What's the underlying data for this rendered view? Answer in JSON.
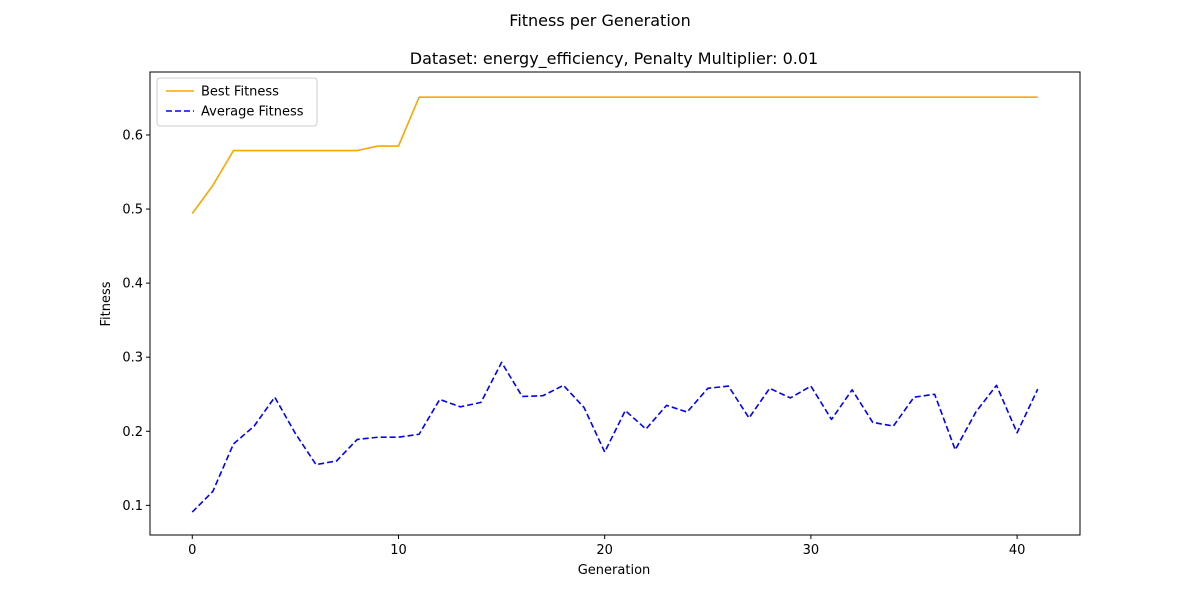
{
  "figure": {
    "suptitle": "Fitness per Generation",
    "title": "Dataset: energy_efficiency, Penalty Multiplier: 0.01"
  },
  "chart_data": {
    "type": "line",
    "title": "Dataset: energy_efficiency, Penalty Multiplier: 0.01",
    "suptitle": "Fitness per Generation",
    "xlabel": "Generation",
    "ylabel": "Fitness",
    "xlim": [
      -2.05,
      43.05
    ],
    "ylim": [
      0.06,
      0.685
    ],
    "xticks": [
      0,
      10,
      20,
      30,
      40
    ],
    "yticks": [
      0.1,
      0.2,
      0.3,
      0.4,
      0.5,
      0.6
    ],
    "grid": false,
    "legend_position": "top-left",
    "x": [
      0,
      1,
      2,
      3,
      4,
      5,
      6,
      7,
      8,
      9,
      10,
      11,
      12,
      13,
      14,
      15,
      16,
      17,
      18,
      19,
      20,
      21,
      22,
      23,
      24,
      25,
      26,
      27,
      28,
      29,
      30,
      31,
      32,
      33,
      34,
      35,
      36,
      37,
      38,
      39,
      40,
      41
    ],
    "series": [
      {
        "name": "Best Fitness",
        "color": "#ffa500",
        "style": "solid",
        "values": [
          0.494,
          0.532,
          0.579,
          0.579,
          0.579,
          0.579,
          0.579,
          0.579,
          0.579,
          0.585,
          0.585,
          0.651,
          0.651,
          0.651,
          0.651,
          0.651,
          0.651,
          0.651,
          0.651,
          0.651,
          0.651,
          0.651,
          0.651,
          0.651,
          0.651,
          0.651,
          0.651,
          0.651,
          0.651,
          0.651,
          0.651,
          0.651,
          0.651,
          0.651,
          0.651,
          0.651,
          0.651,
          0.651,
          0.651,
          0.651,
          0.651,
          0.651
        ]
      },
      {
        "name": "Average Fitness",
        "color": "#0000ff",
        "style": "dashed",
        "values": [
          0.091,
          0.119,
          0.183,
          0.207,
          0.246,
          0.197,
          0.155,
          0.16,
          0.189,
          0.192,
          0.192,
          0.196,
          0.243,
          0.233,
          0.239,
          0.293,
          0.247,
          0.248,
          0.262,
          0.232,
          0.172,
          0.228,
          0.203,
          0.235,
          0.226,
          0.258,
          0.261,
          0.218,
          0.258,
          0.245,
          0.261,
          0.216,
          0.256,
          0.212,
          0.207,
          0.246,
          0.25,
          0.175,
          0.226,
          0.262,
          0.198,
          0.257
        ]
      }
    ]
  }
}
